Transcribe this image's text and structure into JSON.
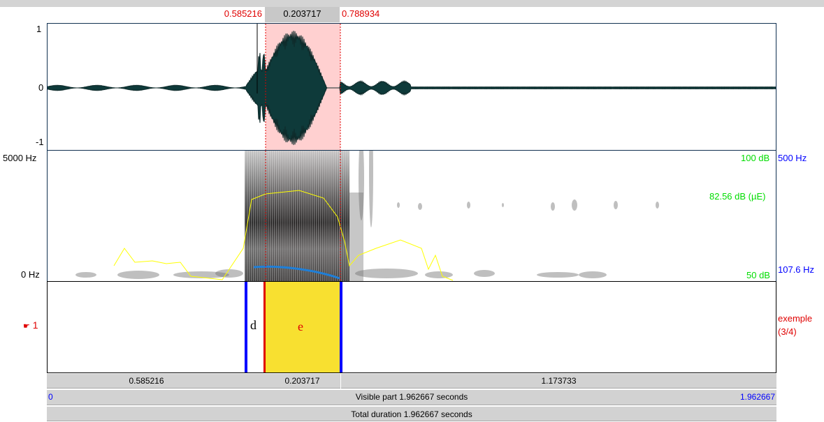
{
  "selection": {
    "start": "0.585216",
    "duration": "0.203717",
    "end": "0.788934"
  },
  "waveform": {
    "y_max": "1",
    "y_zero": "0",
    "y_min": "-1"
  },
  "spectrogram": {
    "freq_max": "5000 Hz",
    "freq_min": "0 Hz",
    "intensity_max": "100 dB",
    "intensity_current": "82.56 dB (µE)",
    "intensity_min": "50 dB",
    "pitch_max": "500 Hz",
    "pitch_current": "107.6 Hz"
  },
  "tier": {
    "number": "1",
    "icon": "pointing-hand-icon",
    "name": "exemple",
    "count": "(3/4)",
    "intervals": [
      {
        "text": "d"
      },
      {
        "text": "e"
      }
    ]
  },
  "segments": {
    "before": "0.585216",
    "selected": "0.203717",
    "after": "1.173733"
  },
  "visible": {
    "start": "0",
    "label": "Visible part 1.962667 seconds",
    "end": "1.962667"
  },
  "total": {
    "label": "Total duration 1.962667 seconds"
  },
  "colors": {
    "selection_fill": "#ffd0d0",
    "interval_highlight": "#f8e030",
    "boundary": "#0000ff",
    "cursor": "#ff0000",
    "intensity": "#ffff00",
    "pitch": "#1f7fd8",
    "label_red": "#e00000",
    "label_green": "#00dd00",
    "label_blue": "#0000ff"
  }
}
